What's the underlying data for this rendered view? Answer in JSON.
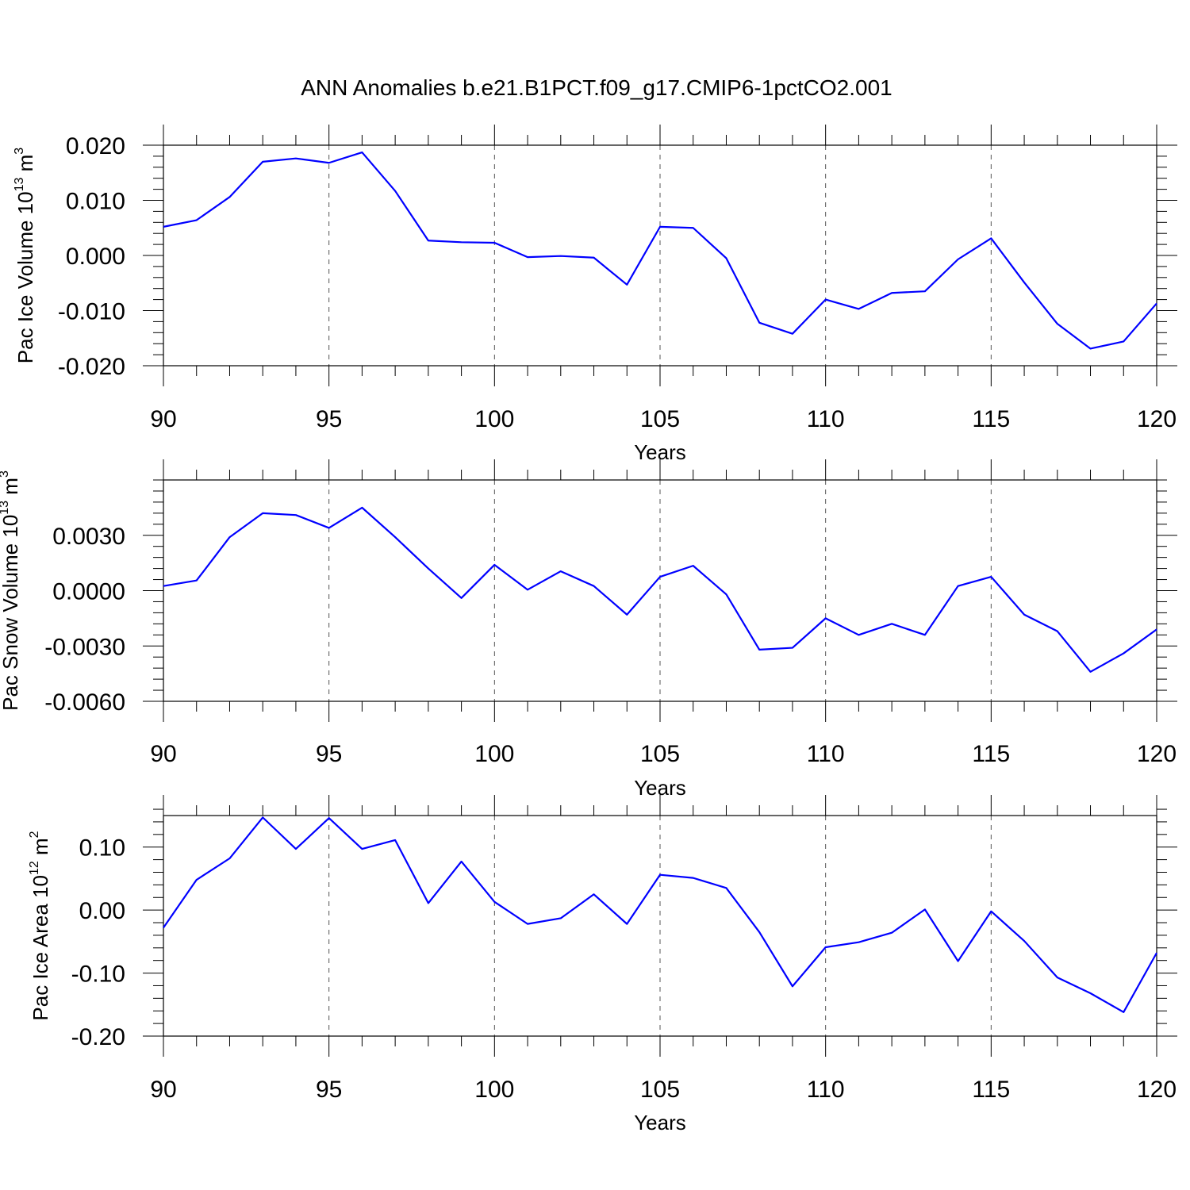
{
  "figure_title": "ANN Anomalies b.e21.B1PCT.f09_g17.CMIP6-1pctCO2.001",
  "colors": {
    "series": "#0000ff",
    "axes": "#000000",
    "grid": "#555555"
  },
  "chart_data": [
    {
      "type": "line",
      "ylabel": "Pac Ice Volume 10",
      "ylabel_exp": "13",
      "ylabel_unit": " m",
      "ylabel_unit_exp": "3",
      "xlabel": "Years",
      "xlim": [
        90,
        120
      ],
      "ylim": [
        -0.02,
        0.02
      ],
      "xticks": [
        90,
        95,
        100,
        105,
        110,
        115,
        120
      ],
      "xtick_labels": [
        "90",
        "95",
        "100",
        "105",
        "110",
        "115",
        "120"
      ],
      "yticks": [
        -0.02,
        -0.01,
        0.0,
        0.01,
        0.02
      ],
      "ytick_labels": [
        "-0.020",
        "-0.010",
        "0.000",
        "0.010",
        "0.020"
      ],
      "grid": "vertical dashed at major x ticks",
      "x": [
        90,
        91,
        92,
        93,
        94,
        95,
        96,
        97,
        98,
        99,
        100,
        101,
        102,
        103,
        104,
        105,
        106,
        107,
        108,
        109,
        110,
        111,
        112,
        113,
        114,
        115,
        116,
        117,
        118,
        119,
        120
      ],
      "y": [
        0.0052,
        0.0064,
        0.0106,
        0.017,
        0.0176,
        0.0168,
        0.0187,
        0.0117,
        0.0027,
        0.0024,
        0.0023,
        -0.0003,
        -0.0001,
        -0.0004,
        -0.0053,
        0.0052,
        0.005,
        -0.0005,
        -0.0122,
        -0.0142,
        -0.008,
        -0.0097,
        -0.0068,
        -0.0065,
        -0.0007,
        0.0031,
        -0.0049,
        -0.0124,
        -0.0169,
        -0.0156,
        -0.0087
      ]
    },
    {
      "type": "line",
      "ylabel": "Pac Snow Volume 10",
      "ylabel_exp": "13",
      "ylabel_unit": " m",
      "ylabel_unit_exp": "3",
      "xlabel": "Years",
      "xlim": [
        90,
        120
      ],
      "ylim": [
        -0.006,
        0.006
      ],
      "xticks": [
        90,
        95,
        100,
        105,
        110,
        115,
        120
      ],
      "xtick_labels": [
        "90",
        "95",
        "100",
        "105",
        "110",
        "115",
        "120"
      ],
      "yticks": [
        -0.006,
        -0.003,
        0.0,
        0.003
      ],
      "ytick_labels": [
        "-0.0060",
        "-0.0030",
        "0.0000",
        "0.0030"
      ],
      "grid": "vertical dashed at major x ticks",
      "x": [
        90,
        91,
        92,
        93,
        94,
        95,
        96,
        97,
        98,
        99,
        100,
        101,
        102,
        103,
        104,
        105,
        106,
        107,
        108,
        109,
        110,
        111,
        112,
        113,
        114,
        115,
        116,
        117,
        118,
        119,
        120
      ],
      "y": [
        0.00025,
        0.00055,
        0.0029,
        0.0042,
        0.0041,
        0.0034,
        0.0045,
        0.0029,
        0.0012,
        -0.0004,
        0.0014,
        5e-05,
        0.00105,
        0.00025,
        -0.0013,
        0.00075,
        0.00135,
        -0.0002,
        -0.0032,
        -0.0031,
        -0.0015,
        -0.0024,
        -0.0018,
        -0.0024,
        0.00025,
        0.00075,
        -0.0013,
        -0.0022,
        -0.0044,
        -0.0034,
        -0.0021
      ]
    },
    {
      "type": "line",
      "ylabel": "Pac Ice Area 10",
      "ylabel_exp": "12",
      "ylabel_unit": " m",
      "ylabel_unit_exp": "2",
      "xlabel": "Years",
      "xlim": [
        90,
        120
      ],
      "ylim": [
        -0.2,
        0.15
      ],
      "xticks": [
        90,
        95,
        100,
        105,
        110,
        115,
        120
      ],
      "xtick_labels": [
        "90",
        "95",
        "100",
        "105",
        "110",
        "115",
        "120"
      ],
      "yticks": [
        -0.2,
        -0.1,
        0.0,
        0.1
      ],
      "ytick_labels": [
        "-0.20",
        "-0.10",
        "0.00",
        "0.10"
      ],
      "grid": "vertical dashed at major x ticks",
      "x": [
        90,
        91,
        92,
        93,
        94,
        95,
        96,
        97,
        98,
        99,
        100,
        101,
        102,
        103,
        104,
        105,
        106,
        107,
        108,
        109,
        110,
        111,
        112,
        113,
        114,
        115,
        116,
        117,
        118,
        119,
        120
      ],
      "y": [
        -0.028,
        0.048,
        0.082,
        0.147,
        0.097,
        0.146,
        0.097,
        0.111,
        0.011,
        0.077,
        0.013,
        -0.022,
        -0.013,
        0.025,
        -0.022,
        0.056,
        0.051,
        0.035,
        -0.035,
        -0.121,
        -0.059,
        -0.051,
        -0.036,
        0.001,
        -0.081,
        -0.002,
        -0.049,
        -0.107,
        -0.132,
        -0.162,
        -0.068
      ]
    }
  ]
}
